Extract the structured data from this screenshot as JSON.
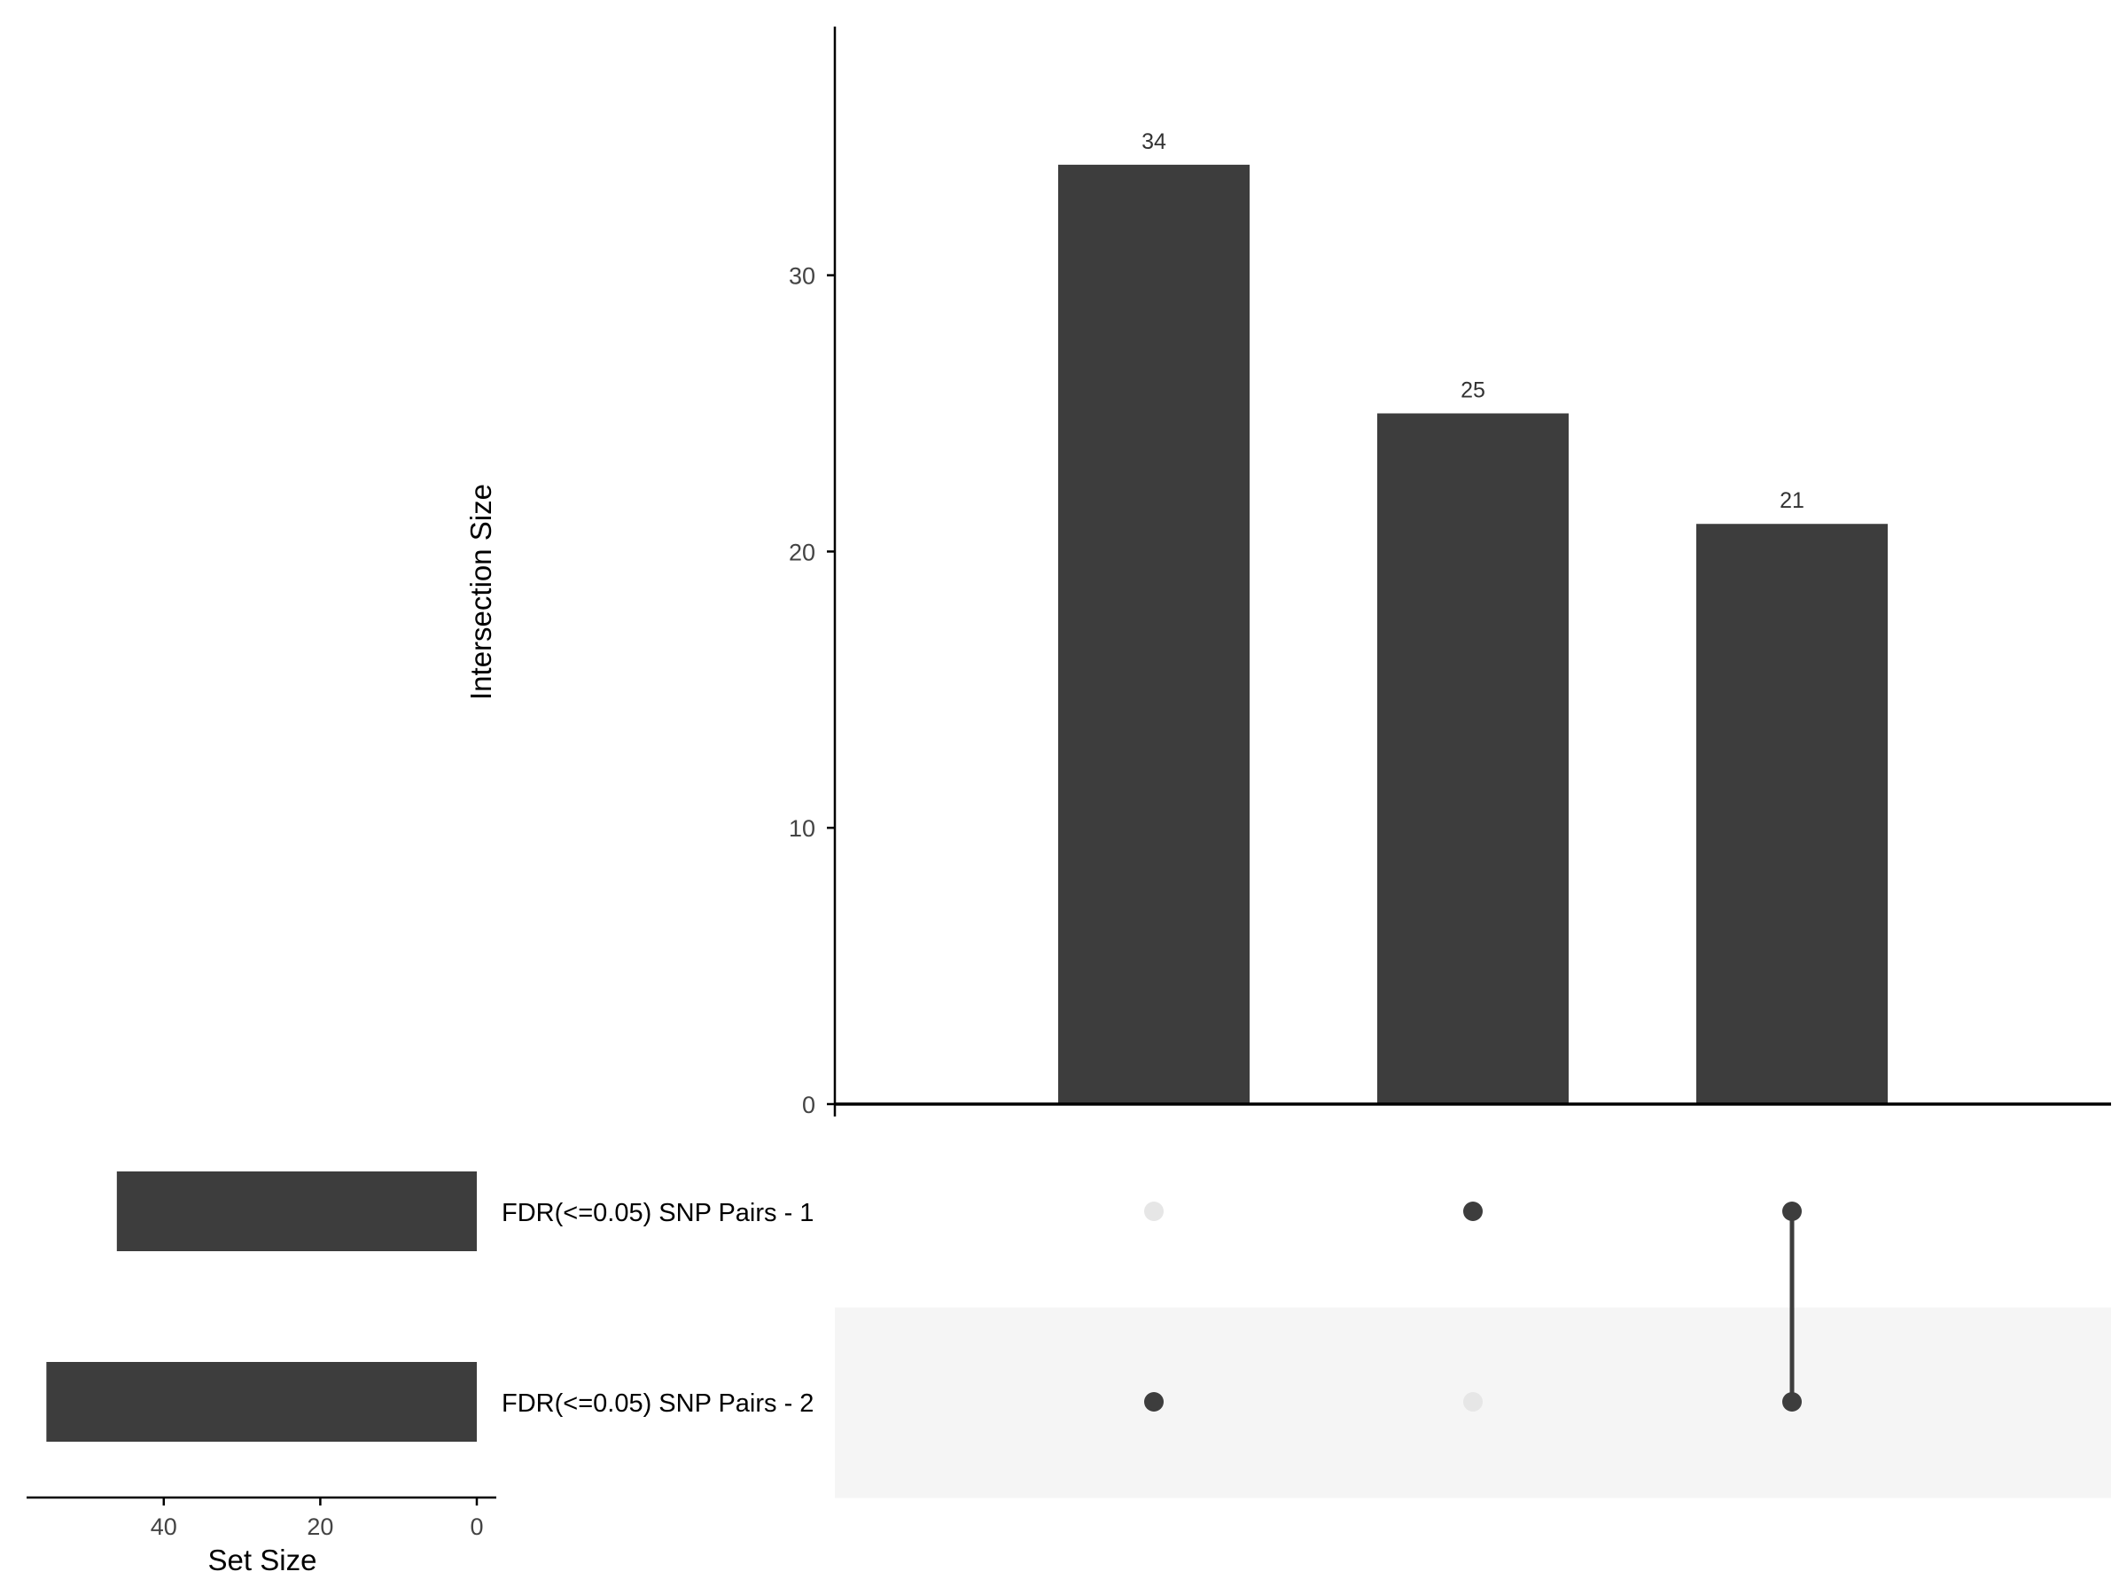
{
  "chart_data": [
    {
      "type": "bar",
      "title": "",
      "ylabel": "Intersection Size",
      "xlabel": "",
      "ylim": [
        0,
        39
      ],
      "yticks": [
        0,
        10,
        20,
        30
      ],
      "categories": [
        "FDR(<=0.05) SNP Pairs - 2 only",
        "FDR(<=0.05) SNP Pairs - 1 only",
        "FDR(<=0.05) SNP Pairs - 1 & FDR(<=0.05) SNP Pairs - 2"
      ],
      "values": [
        34,
        25,
        21
      ],
      "data_labels": [
        "34",
        "25",
        "21"
      ],
      "grid": false,
      "bar_color": "#3d3d3d"
    },
    {
      "type": "bar",
      "orientation": "horizontal-reversed",
      "xlabel": "Set Size",
      "ylabel": "",
      "xticks": [
        40,
        20,
        0
      ],
      "sets": [
        "FDR(<=0.05) SNP Pairs - 1",
        "FDR(<=0.05) SNP Pairs - 2"
      ],
      "values": [
        46,
        55
      ],
      "bar_color": "#3d3d3d"
    }
  ],
  "matrix": {
    "sets": [
      "FDR(<=0.05) SNP Pairs - 1",
      "FDR(<=0.05) SNP Pairs - 2"
    ],
    "membership": [
      [
        false,
        true
      ],
      [
        true,
        false
      ],
      [
        true,
        true
      ]
    ],
    "active_color": "#3d3d3d",
    "inactive_color": "#e6e6e6",
    "stripe_color": "#f5f5f5"
  }
}
